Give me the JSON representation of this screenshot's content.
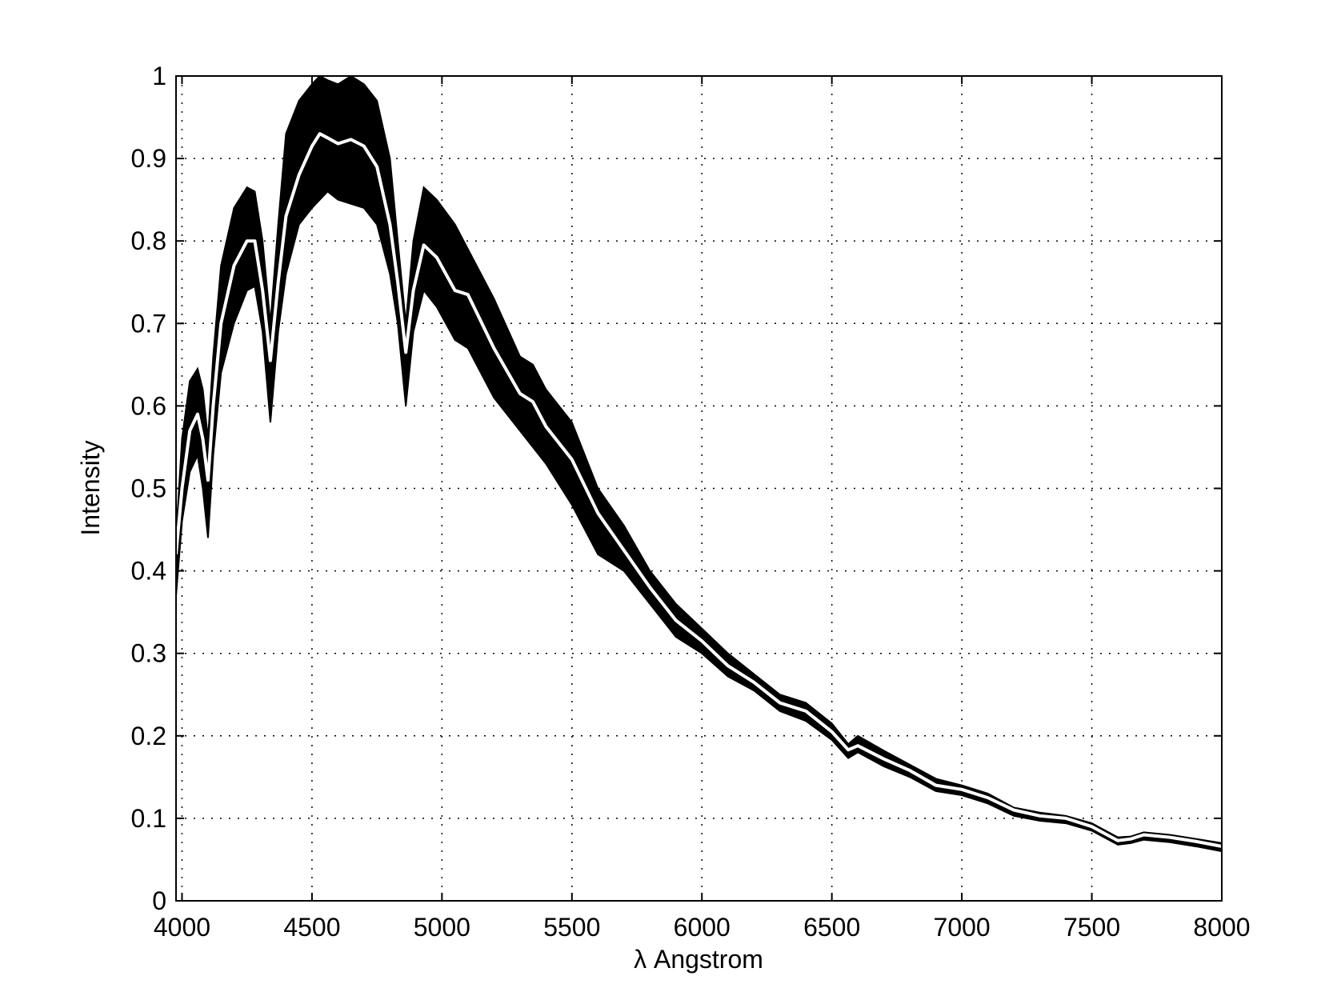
{
  "chart_data": {
    "type": "line",
    "xlabel": "λ  Angstrom",
    "ylabel": "Intensity",
    "x": [
      3977,
      4000,
      4030,
      4060,
      4080,
      4100,
      4120,
      4150,
      4200,
      4250,
      4280,
      4310,
      4340,
      4370,
      4400,
      4450,
      4500,
      4530,
      4560,
      4600,
      4650,
      4700,
      4750,
      4800,
      4830,
      4861,
      4890,
      4930,
      4980,
      5050,
      5100,
      5200,
      5300,
      5350,
      5400,
      5500,
      5600,
      5700,
      5800,
      5900,
      6000,
      6100,
      6200,
      6300,
      6400,
      6500,
      6563,
      6600,
      6700,
      6800,
      6900,
      7000,
      7100,
      7200,
      7300,
      7400,
      7500,
      7600,
      7650,
      7700,
      7800,
      7900,
      8000
    ],
    "band": {
      "color": "#000000",
      "upper": [
        0.44,
        0.56,
        0.63,
        0.645,
        0.62,
        0.56,
        0.66,
        0.77,
        0.84,
        0.865,
        0.86,
        0.8,
        0.7,
        0.82,
        0.93,
        0.97,
        0.99,
        1.0,
        0.995,
        0.99,
        1.0,
        0.99,
        0.97,
        0.9,
        0.8,
        0.7,
        0.8,
        0.865,
        0.85,
        0.82,
        0.79,
        0.73,
        0.66,
        0.65,
        0.62,
        0.58,
        0.5,
        0.455,
        0.4,
        0.36,
        0.33,
        0.3,
        0.275,
        0.25,
        0.24,
        0.215,
        0.19,
        0.2,
        0.182,
        0.165,
        0.148,
        0.14,
        0.13,
        0.113,
        0.107,
        0.103,
        0.094,
        0.077,
        0.078,
        0.083,
        0.08,
        0.075,
        0.07
      ],
      "lower": [
        0.37,
        0.46,
        0.52,
        0.54,
        0.5,
        0.44,
        0.54,
        0.64,
        0.7,
        0.74,
        0.745,
        0.69,
        0.58,
        0.69,
        0.76,
        0.82,
        0.84,
        0.85,
        0.86,
        0.85,
        0.845,
        0.84,
        0.82,
        0.76,
        0.7,
        0.6,
        0.69,
        0.74,
        0.72,
        0.68,
        0.67,
        0.61,
        0.57,
        0.55,
        0.53,
        0.48,
        0.42,
        0.4,
        0.36,
        0.32,
        0.3,
        0.272,
        0.255,
        0.23,
        0.218,
        0.195,
        0.173,
        0.18,
        0.163,
        0.15,
        0.133,
        0.128,
        0.118,
        0.103,
        0.097,
        0.094,
        0.085,
        0.068,
        0.07,
        0.074,
        0.071,
        0.066,
        0.06
      ]
    },
    "series": [
      {
        "color": "#ffffff",
        "values": [
          0.42,
          0.5,
          0.57,
          0.59,
          0.56,
          0.51,
          0.6,
          0.7,
          0.77,
          0.8,
          0.8,
          0.74,
          0.655,
          0.75,
          0.83,
          0.88,
          0.915,
          0.93,
          0.925,
          0.918,
          0.923,
          0.915,
          0.89,
          0.82,
          0.75,
          0.665,
          0.74,
          0.795,
          0.78,
          0.74,
          0.735,
          0.67,
          0.615,
          0.605,
          0.575,
          0.535,
          0.47,
          0.425,
          0.38,
          0.34,
          0.315,
          0.285,
          0.265,
          0.24,
          0.23,
          0.205,
          0.183,
          0.188,
          0.172,
          0.158,
          0.14,
          0.135,
          0.125,
          0.11,
          0.103,
          0.1,
          0.09,
          0.073,
          0.075,
          0.08,
          0.077,
          0.072,
          0.066
        ]
      }
    ],
    "xlim": [
      3977,
      8000
    ],
    "ylim": [
      0,
      1
    ],
    "xticks": [
      4000,
      4500,
      5000,
      5500,
      6000,
      6500,
      7000,
      7500,
      8000
    ],
    "yticks": [
      0,
      0.1,
      0.2,
      0.3,
      0.4,
      0.5,
      0.6,
      0.7,
      0.8,
      0.9,
      1
    ],
    "grid": true
  }
}
